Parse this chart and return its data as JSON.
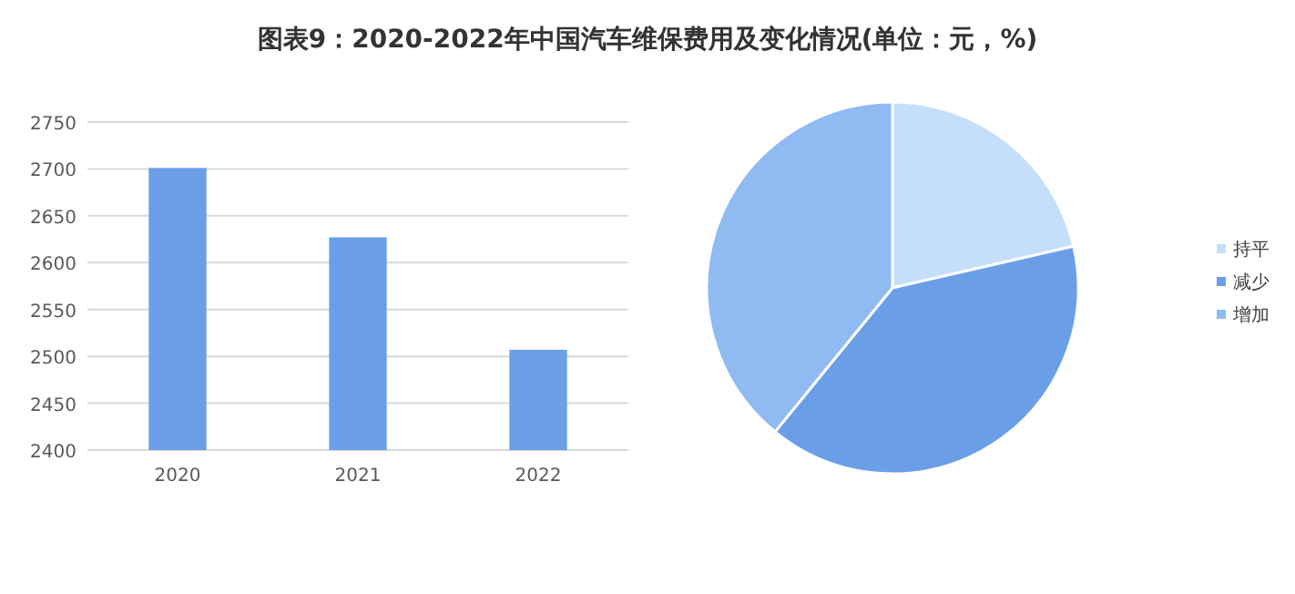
{
  "chart_data": [
    {
      "type": "bar",
      "title": "图表9：2020-2022年中国汽车维保费用及变化情况(单位：元，%)",
      "categories": [
        "2020",
        "2021",
        "2022"
      ],
      "values": [
        2701,
        2627,
        2507
      ],
      "color": "#6a9fe8",
      "ylim": [
        2400,
        2750
      ],
      "yticks": [
        2400,
        2450,
        2500,
        2550,
        2600,
        2650,
        2700,
        2750
      ],
      "grid": "y"
    },
    {
      "type": "pie",
      "categories": [
        "持平",
        "减少",
        "增加"
      ],
      "values": [
        21.4,
        39.5,
        39.1
      ],
      "colors": [
        "#c5dffb",
        "#6a9fe8",
        "#8fbaf2"
      ],
      "legend": "right"
    }
  ]
}
